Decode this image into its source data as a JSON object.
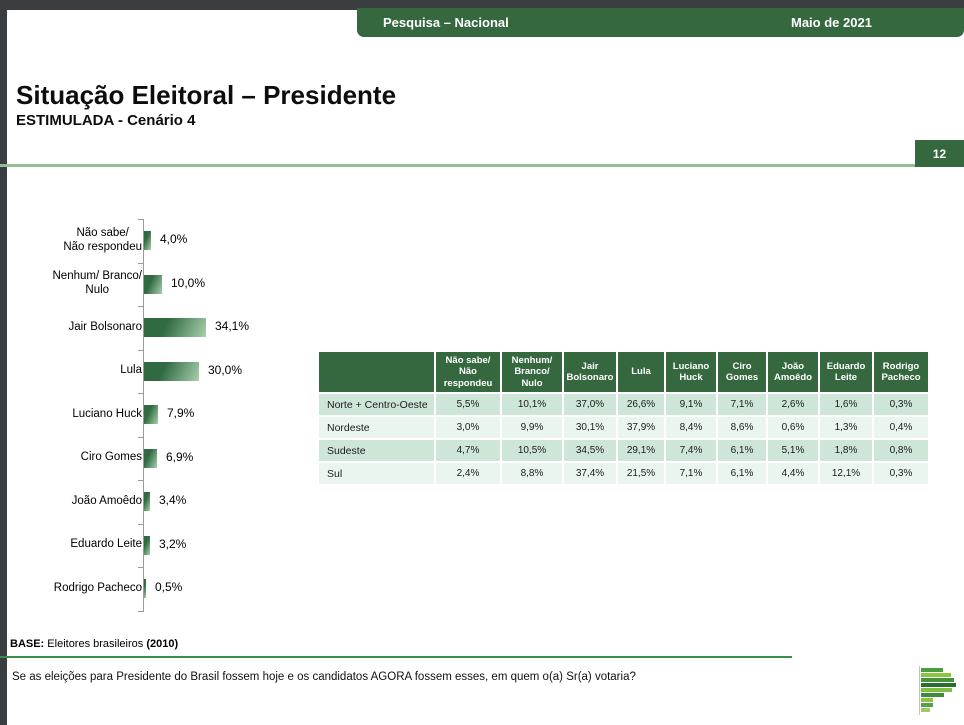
{
  "header": {
    "left_label": "Pesquisa – Nacional",
    "right_label": "Maio de 2021"
  },
  "title": {
    "main": "Situação Eleitoral – Presidente",
    "subtitle": "ESTIMULADA - Cenário 4",
    "page_number": "12"
  },
  "chart_data": [
    {
      "type": "bar",
      "orientation": "horizontal",
      "title": "",
      "categories": [
        "Não sabe/\nNão respondeu",
        "Nenhum/ Branco/\nNulo",
        "Jair Bolsonaro",
        "Lula",
        "Luciano Huck",
        "Ciro Gomes",
        "João Amoêdo",
        "Eduardo Leite",
        "Rodrigo Pacheco"
      ],
      "values": [
        4.0,
        10.0,
        34.1,
        30.0,
        7.9,
        6.9,
        3.4,
        3.2,
        0.5
      ],
      "value_labels": [
        "4,0%",
        "10,0%",
        "34,1%",
        "30,0%",
        "7,9%",
        "6,9%",
        "3,4%",
        "3,2%",
        "0,5%"
      ],
      "xlim": [
        0,
        40
      ],
      "grid": false,
      "legend": "none",
      "bar_color_dark": "#2F6A40",
      "bar_color_light": "#A9CFAE"
    },
    {
      "type": "table",
      "columns": [
        "Não sabe/ Não respondeu",
        "Nenhum/ Branco/ Nulo",
        "Jair Bolsonaro",
        "Lula",
        "Luciano Huck",
        "Ciro Gomes",
        "João Amoêdo",
        "Eduardo Leite",
        "Rodrigo Pacheco"
      ],
      "rows": [
        {
          "region": "Norte + Centro-Oeste",
          "values": [
            "5,5%",
            "10,1%",
            "37,0%",
            "26,6%",
            "9,1%",
            "7,1%",
            "2,6%",
            "1,6%",
            "0,3%"
          ]
        },
        {
          "region": "Nordeste",
          "values": [
            "3,0%",
            "9,9%",
            "30,1%",
            "37,9%",
            "8,4%",
            "8,6%",
            "0,6%",
            "1,3%",
            "0,4%"
          ]
        },
        {
          "region": "Sudeste",
          "values": [
            "4,7%",
            "10,5%",
            "34,5%",
            "29,1%",
            "7,4%",
            "6,1%",
            "5,1%",
            "1,8%",
            "0,8%"
          ]
        },
        {
          "region": "Sul",
          "values": [
            "2,4%",
            "8,8%",
            "37,4%",
            "21,5%",
            "7,1%",
            "6,1%",
            "4,4%",
            "12,1%",
            "0,3%"
          ]
        }
      ],
      "row_alt_colors": [
        "#CDE6D7",
        "#EAF5EF"
      ]
    }
  ],
  "footer": {
    "base_label": "BASE:",
    "base_mid": " Eleitores brasileiros ",
    "base_bold": "(2010)",
    "question": "Se as eleições para Presidente do Brasil fossem hoje e os candidatos AGORA fossem esses, em quem o(a) Sr(a) votaria?"
  },
  "logo": {
    "name": "bar-chart-p-logo",
    "bars": [
      {
        "w": 22,
        "c": "#4F9E3E"
      },
      {
        "w": 30,
        "c": "#8CC63F"
      },
      {
        "w": 33,
        "c": "#44923C"
      },
      {
        "w": 35,
        "c": "#2B6E31"
      },
      {
        "w": 31,
        "c": "#82BE41"
      },
      {
        "w": 23,
        "c": "#3F8C3B"
      },
      {
        "w": 12,
        "c": "#8CC63F"
      },
      {
        "w": 12,
        "c": "#55A044"
      },
      {
        "w": 9,
        "c": "#9BCB66"
      }
    ]
  },
  "colors": {
    "accent_green": "#35683F",
    "frame_gray": "#3B3E41",
    "title_rule_green": "#93BE93",
    "footer_rule_green": "#3E8B4A"
  }
}
